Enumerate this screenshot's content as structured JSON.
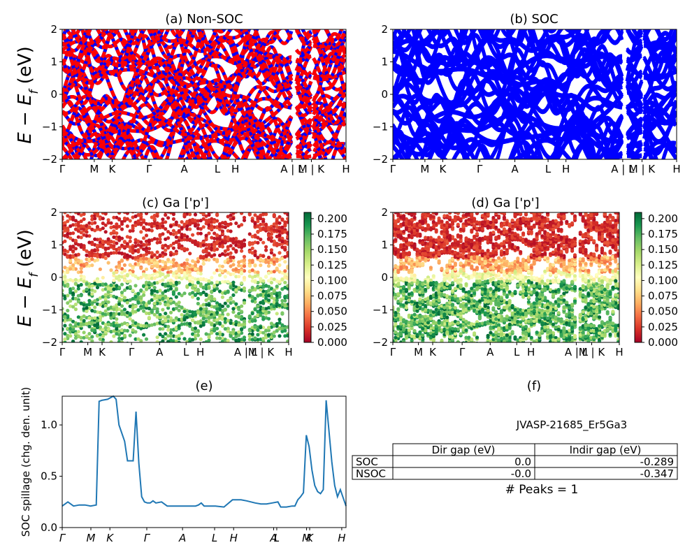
{
  "panels": {
    "a": {
      "title": "(a) Non-SOC"
    },
    "b": {
      "title": "(b) SOC"
    },
    "c": {
      "title": "(c)  Ga ['p']"
    },
    "d": {
      "title": "(d) Ga ['p']"
    },
    "e": {
      "title": "(e)"
    },
    "f": {
      "title": "(f)"
    }
  },
  "ylabel_band": "E − E_f (eV)",
  "ylabel_band_parts": {
    "main": "E − E",
    "sub": "f",
    "unit": " (eV)"
  },
  "ylabel_spillage": "SOC spillage (chg. den. unit)",
  "kpath_labels_top": [
    "Γ",
    "M",
    "K",
    "Γ",
    "A",
    "L",
    "H",
    "A | L",
    "M | K",
    "H"
  ],
  "kpath_labels_mid": [
    "Γ",
    "M",
    "K",
    "Γ",
    "A",
    "L",
    "H",
    "A | L",
    "M | K",
    "H"
  ],
  "kpath_labels_bottom": [
    "Γ",
    "M",
    "K",
    "Γ",
    "A",
    "L",
    "H",
    "A",
    "L",
    "M",
    "K",
    "H"
  ],
  "colorbar": {
    "ticks": [
      "0.000",
      "0.025",
      "0.050",
      "0.075",
      "0.100",
      "0.125",
      "0.150",
      "0.175",
      "0.200"
    ],
    "colormap": "RdYlGn",
    "range": [
      0.0,
      0.21
    ]
  },
  "colors": {
    "nonsoc_red": "#ff0000",
    "nonsoc_blue": "#0000ff",
    "soc_blue": "#0000ff",
    "spillage_line": "#1f77b4"
  },
  "chart_data": [
    {
      "type": "line",
      "panel": "a",
      "title": "(a) Non-SOC",
      "ylim": [
        -2,
        2
      ],
      "yticks": [
        -2,
        -1,
        0,
        1,
        2
      ]
    },
    {
      "type": "line",
      "panel": "b",
      "title": "(b) SOC",
      "ylim": [
        -2,
        2
      ],
      "yticks": [
        -2,
        -1,
        0,
        1,
        2
      ]
    },
    {
      "type": "scatter",
      "panel": "c",
      "title": "(c)  Ga ['p']",
      "ylim": [
        -2,
        2
      ],
      "yticks": [
        -2,
        -1,
        0,
        1,
        2
      ],
      "color_range": [
        0.0,
        0.21
      ]
    },
    {
      "type": "scatter",
      "panel": "d",
      "title": "(d) Ga ['p']",
      "ylim": [
        -2,
        2
      ],
      "yticks": [
        -2,
        -1,
        0,
        1,
        2
      ],
      "color_range": [
        0.0,
        0.21
      ]
    },
    {
      "type": "line",
      "panel": "e",
      "title": "(e)",
      "ylabel": "SOC spillage (chg. den. unit)",
      "ylim": [
        0.0,
        1.28
      ],
      "yticks": [
        "0.0",
        "0.5",
        "1.0"
      ],
      "xlim": [
        0,
        100
      ],
      "x": [
        0,
        2,
        4,
        6,
        8,
        10,
        12,
        13,
        14,
        16,
        18,
        19,
        20,
        22,
        23,
        24,
        25,
        26,
        27,
        28,
        29,
        30,
        31,
        32,
        33,
        35,
        37,
        40,
        42,
        45,
        47,
        48,
        49,
        50,
        52,
        54,
        57,
        60,
        62,
        63,
        65,
        68,
        70,
        72,
        74,
        76,
        77,
        79,
        81,
        82,
        83,
        84,
        85,
        86,
        87,
        88,
        89,
        90,
        91,
        92,
        93,
        95,
        96,
        97,
        98,
        100
      ],
      "y": [
        0.21,
        0.25,
        0.21,
        0.22,
        0.22,
        0.21,
        0.22,
        1.23,
        1.24,
        1.25,
        1.28,
        1.25,
        1.0,
        0.84,
        0.65,
        0.65,
        0.65,
        1.13,
        0.63,
        0.3,
        0.25,
        0.24,
        0.24,
        0.26,
        0.24,
        0.25,
        0.21,
        0.21,
        0.21,
        0.21,
        0.21,
        0.22,
        0.24,
        0.21,
        0.21,
        0.21,
        0.2,
        0.27,
        0.27,
        0.27,
        0.26,
        0.24,
        0.23,
        0.23,
        0.24,
        0.25,
        0.2,
        0.2,
        0.21,
        0.21,
        0.27,
        0.3,
        0.34,
        0.9,
        0.79,
        0.56,
        0.41,
        0.35,
        0.33,
        0.37,
        1.24,
        0.64,
        0.41,
        0.3,
        0.37,
        0.21
      ]
    },
    {
      "type": "table",
      "panel": "f",
      "title": "(f)",
      "caption": "JVASP-21685_Er5Ga3",
      "columns": [
        "Dir gap (eV)",
        "Indir gap (eV)"
      ],
      "rows": [
        {
          "label": "SOC",
          "values": [
            "0.0",
            "-0.289"
          ]
        },
        {
          "label": "NSOC",
          "values": [
            "-0.0",
            "-0.347"
          ]
        }
      ],
      "footer": "# Peaks = 1"
    }
  ]
}
